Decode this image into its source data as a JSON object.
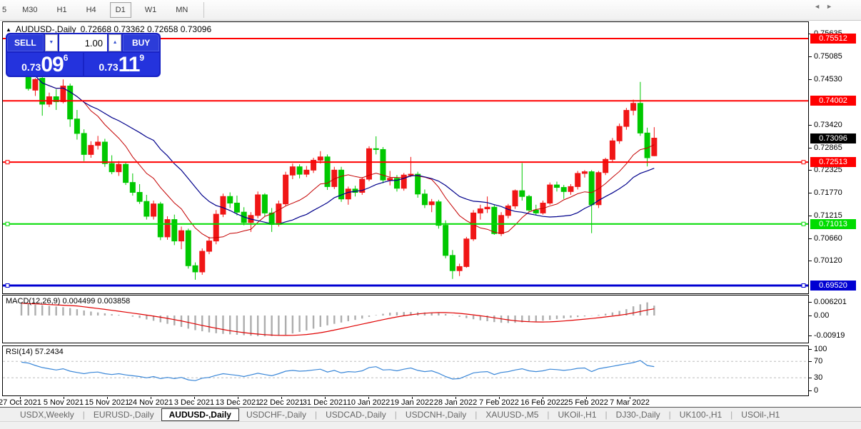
{
  "toolbar": {
    "timeframes": [
      {
        "label": "5",
        "partial": true,
        "active": false
      },
      {
        "label": "M30",
        "active": false
      },
      {
        "label": "H1",
        "active": false
      },
      {
        "label": "H4",
        "active": false
      },
      {
        "label": "D1",
        "active": true
      },
      {
        "label": "W1",
        "active": false
      },
      {
        "label": "MN",
        "active": false
      }
    ]
  },
  "chart": {
    "header": {
      "expand_icon": "▲",
      "symbol": "AUDUSD-,Daily",
      "ohlc_text": "0.72668 0.73362 0.72658 0.73096"
    },
    "trade_panel": {
      "sell_label": "SELL",
      "buy_label": "BUY",
      "volume": "1.00",
      "spin_down_icon": "▼",
      "spin_up_icon": "▲",
      "sell_price": {
        "prefix": "0.73",
        "big": "09",
        "sup": "6"
      },
      "buy_price": {
        "prefix": "0.73",
        "big": "11",
        "sup": "9"
      }
    }
  },
  "chart_data": {
    "type": "candlestick",
    "symbol": "AUDUSD-,Daily",
    "current_bar": {
      "open": 0.72668,
      "high": 0.73362,
      "low": 0.72658,
      "close": 0.73096
    },
    "current_price": {
      "value": 0.73096,
      "label": "0.73096",
      "badge_color": "#000000"
    },
    "y_ticks": [
      0.75635,
      0.75085,
      0.7453,
      0.7342,
      0.72865,
      0.72325,
      0.7177,
      0.71215,
      0.7066,
      0.7012
    ],
    "x_labels": [
      "27 Oct 2021",
      "5 Nov 2021",
      "15 Nov 2021",
      "24 Nov 2021",
      "3 Dec 2021",
      "13 Dec 2021",
      "22 Dec 2021",
      "31 Dec 2021",
      "10 Jan 2022",
      "19 Jan 2022",
      "28 Jan 2022",
      "7 Feb 2022",
      "16 Feb 2022",
      "25 Feb 2022",
      "7 Mar 2022"
    ],
    "levels": [
      {
        "value": 0.75512,
        "label": "0.75512",
        "color": "#FF0000",
        "thickness": 2,
        "handles": false
      },
      {
        "value": 0.74002,
        "label": "0.74002",
        "color": "#FF0000",
        "thickness": 2,
        "handles": false
      },
      {
        "value": 0.72513,
        "label": "0.72513",
        "color": "#FF0000",
        "thickness": 2,
        "handles": true
      },
      {
        "value": 0.71013,
        "label": "0.71013",
        "color": "#00DC00",
        "thickness": 2,
        "handles": true
      },
      {
        "value": 0.6952,
        "label": "0.69520",
        "color": "#0000D2",
        "thickness": 3,
        "handles": true
      }
    ],
    "style": {
      "up_color": "#F01616",
      "down_color": "#00C800",
      "ma_fast_color": "#C40000",
      "ma_slow_color": "#00008B",
      "macd_bar_color": "#ADADAD",
      "macd_signal_color": "#E00000",
      "rsi_line_color": "#3A87D8",
      "rsi_level_color": "#BDBDBD"
    },
    "ma_fast_period": 10,
    "ma_slow_period": 20,
    "candles": [
      [
        0.753,
        0.754,
        0.748,
        0.75
      ],
      [
        0.75,
        0.7538,
        0.7425,
        0.743
      ],
      [
        0.7426,
        0.7455,
        0.7412,
        0.7452
      ],
      [
        0.7455,
        0.7462,
        0.7364,
        0.7392
      ],
      [
        0.7392,
        0.742,
        0.7385,
        0.741
      ],
      [
        0.741,
        0.7428,
        0.7378,
        0.7398
      ],
      [
        0.7398,
        0.7452,
        0.7394,
        0.7436
      ],
      [
        0.7436,
        0.7442,
        0.7337,
        0.7356
      ],
      [
        0.7356,
        0.7378,
        0.7306,
        0.7321
      ],
      [
        0.7321,
        0.7331,
        0.7254,
        0.727
      ],
      [
        0.727,
        0.7302,
        0.7262,
        0.7292
      ],
      [
        0.7292,
        0.7315,
        0.7282,
        0.73
      ],
      [
        0.73,
        0.7308,
        0.724,
        0.7248
      ],
      [
        0.7248,
        0.7268,
        0.7222,
        0.7228
      ],
      [
        0.7228,
        0.7254,
        0.7218,
        0.7246
      ],
      [
        0.7246,
        0.725,
        0.7196,
        0.7202
      ],
      [
        0.7202,
        0.7224,
        0.717,
        0.7178
      ],
      [
        0.7178,
        0.7198,
        0.715,
        0.7156
      ],
      [
        0.7156,
        0.7172,
        0.7112,
        0.712
      ],
      [
        0.712,
        0.7158,
        0.7112,
        0.715
      ],
      [
        0.715,
        0.7155,
        0.7062,
        0.707
      ],
      [
        0.707,
        0.712,
        0.7063,
        0.7112
      ],
      [
        0.7112,
        0.7124,
        0.705,
        0.706
      ],
      [
        0.706,
        0.7095,
        0.704,
        0.7085
      ],
      [
        0.7085,
        0.709,
        0.6993,
        0.7
      ],
      [
        0.7,
        0.7008,
        0.6966,
        0.6985
      ],
      [
        0.6985,
        0.7042,
        0.6978,
        0.7035
      ],
      [
        0.7035,
        0.707,
        0.7028,
        0.706
      ],
      [
        0.706,
        0.7135,
        0.7052,
        0.7125
      ],
      [
        0.7125,
        0.7175,
        0.7118,
        0.7168
      ],
      [
        0.7168,
        0.7178,
        0.714,
        0.7152
      ],
      [
        0.7152,
        0.717,
        0.7122,
        0.713
      ],
      [
        0.713,
        0.7142,
        0.7098,
        0.7105
      ],
      [
        0.7105,
        0.713,
        0.7082,
        0.7122
      ],
      [
        0.7122,
        0.718,
        0.7115,
        0.7172
      ],
      [
        0.7172,
        0.7176,
        0.712,
        0.7128
      ],
      [
        0.7128,
        0.714,
        0.7082,
        0.71
      ],
      [
        0.71,
        0.7158,
        0.7095,
        0.715
      ],
      [
        0.715,
        0.7228,
        0.7145,
        0.722
      ],
      [
        0.722,
        0.7248,
        0.721,
        0.724
      ],
      [
        0.724,
        0.7246,
        0.7212,
        0.7222
      ],
      [
        0.7222,
        0.7242,
        0.7215,
        0.7232
      ],
      [
        0.7232,
        0.7262,
        0.7225,
        0.7256
      ],
      [
        0.7256,
        0.7278,
        0.7248,
        0.7264
      ],
      [
        0.7264,
        0.727,
        0.7184,
        0.7192
      ],
      [
        0.7192,
        0.724,
        0.7186,
        0.7232
      ],
      [
        0.7232,
        0.724,
        0.7155,
        0.7162
      ],
      [
        0.7162,
        0.7192,
        0.7148,
        0.7186
      ],
      [
        0.7186,
        0.7194,
        0.7168,
        0.7178
      ],
      [
        0.7178,
        0.7215,
        0.7172,
        0.721
      ],
      [
        0.721,
        0.729,
        0.7205,
        0.7284
      ],
      [
        0.7284,
        0.7314,
        0.727,
        0.7282
      ],
      [
        0.7282,
        0.7288,
        0.72,
        0.7208
      ],
      [
        0.7208,
        0.723,
        0.7195,
        0.7212
      ],
      [
        0.7212,
        0.722,
        0.718,
        0.7188
      ],
      [
        0.7188,
        0.7225,
        0.7182,
        0.722
      ],
      [
        0.722,
        0.7264,
        0.7215,
        0.7222
      ],
      [
        0.7222,
        0.7228,
        0.7165,
        0.7174
      ],
      [
        0.7174,
        0.7185,
        0.714,
        0.7148
      ],
      [
        0.7148,
        0.7162,
        0.713,
        0.7155
      ],
      [
        0.7155,
        0.716,
        0.709,
        0.7098
      ],
      [
        0.7098,
        0.711,
        0.7018,
        0.7025
      ],
      [
        0.7025,
        0.7038,
        0.6968,
        0.6988
      ],
      [
        0.6988,
        0.7005,
        0.6975,
        0.6998
      ],
      [
        0.6998,
        0.707,
        0.6995,
        0.7065
      ],
      [
        0.7065,
        0.7135,
        0.706,
        0.7128
      ],
      [
        0.7128,
        0.7148,
        0.7112,
        0.7138
      ],
      [
        0.7138,
        0.7168,
        0.7128,
        0.7142
      ],
      [
        0.7142,
        0.7148,
        0.7075,
        0.7078
      ],
      [
        0.7078,
        0.713,
        0.7072,
        0.7122
      ],
      [
        0.7122,
        0.715,
        0.7115,
        0.7145
      ],
      [
        0.7145,
        0.7185,
        0.7138,
        0.7182
      ],
      [
        0.7182,
        0.7249,
        0.7158,
        0.7168
      ],
      [
        0.7168,
        0.7172,
        0.713,
        0.7135
      ],
      [
        0.7135,
        0.7148,
        0.7122,
        0.7128
      ],
      [
        0.7128,
        0.7158,
        0.7124,
        0.7152
      ],
      [
        0.7152,
        0.7202,
        0.7148,
        0.7196
      ],
      [
        0.7196,
        0.7204,
        0.718,
        0.719
      ],
      [
        0.719,
        0.7196,
        0.7162,
        0.718
      ],
      [
        0.718,
        0.7198,
        0.7172,
        0.7192
      ],
      [
        0.7192,
        0.723,
        0.7185,
        0.7224
      ],
      [
        0.7224,
        0.7232,
        0.7214,
        0.7228
      ],
      [
        0.7228,
        0.7232,
        0.7079,
        0.7148
      ],
      [
        0.7148,
        0.723,
        0.714,
        0.7226
      ],
      [
        0.7226,
        0.7262,
        0.722,
        0.7258
      ],
      [
        0.7258,
        0.731,
        0.7252,
        0.7303
      ],
      [
        0.7303,
        0.7345,
        0.7296,
        0.7338
      ],
      [
        0.7338,
        0.7383,
        0.733,
        0.7377
      ],
      [
        0.7377,
        0.7403,
        0.7365,
        0.7394
      ],
      [
        0.7394,
        0.7446,
        0.7315,
        0.7322
      ],
      [
        0.7322,
        0.7335,
        0.7241,
        0.7262
      ],
      [
        0.72668,
        0.73362,
        0.72658,
        0.73096
      ]
    ],
    "macd": {
      "name": "MACD(12,26,9)",
      "value_text": "0.004499 0.003858",
      "signal_period": 9,
      "y_ticks": [
        {
          "v": 0.006201,
          "label": "0.006201"
        },
        {
          "v": 0,
          "label": "0.00"
        },
        {
          "v": -0.00919,
          "label": "-0.00919"
        }
      ],
      "hist": [
        0.0056,
        0.0053,
        0.005,
        0.0047,
        0.0044,
        0.0041,
        0.0038,
        0.0034,
        0.0029,
        0.0023,
        0.0018,
        0.0014,
        0.001,
        0.0006,
        0.0003,
        0.0,
        -0.0005,
        -0.0011,
        -0.0018,
        -0.0024,
        -0.0031,
        -0.0038,
        -0.0045,
        -0.0052,
        -0.006,
        -0.0067,
        -0.0072,
        -0.0077,
        -0.0081,
        -0.0084,
        -0.0086,
        -0.0088,
        -0.009,
        -0.0092,
        -0.0094,
        -0.0095,
        -0.0094,
        -0.0092,
        -0.0088,
        -0.0082,
        -0.0075,
        -0.0068,
        -0.006,
        -0.0052,
        -0.0045,
        -0.0038,
        -0.0032,
        -0.0026,
        -0.002,
        -0.0014,
        -0.0006,
        0.0002,
        0.0008,
        0.0013,
        0.0015,
        0.0016,
        0.0016,
        0.0015,
        0.0014,
        0.0013,
        0.0011,
        0.0007,
        0.0001,
        -0.0006,
        -0.0012,
        -0.0017,
        -0.0022,
        -0.0026,
        -0.003,
        -0.0033,
        -0.0034,
        -0.0033,
        -0.0031,
        -0.0029,
        -0.0027,
        -0.0024,
        -0.002,
        -0.0016,
        -0.0013,
        -0.001,
        -0.0007,
        -0.0004,
        -0.0001,
        0.0003,
        0.0008,
        0.0014,
        0.0021,
        0.0029,
        0.0042,
        0.0051,
        0.006,
        0.0045
      ]
    },
    "rsi": {
      "name": "RSI(14)",
      "value_text": "57.2434",
      "levels": [
        70,
        30
      ],
      "y_ticks": [
        {
          "v": 100,
          "label": "100"
        },
        {
          "v": 70,
          "label": "70"
        },
        {
          "v": 30,
          "label": "30"
        },
        {
          "v": 0,
          "label": "0"
        }
      ],
      "values": [
        68,
        66,
        60,
        55,
        52,
        49,
        52,
        46,
        43,
        40,
        43,
        44,
        40,
        38,
        40,
        37,
        35,
        33,
        30,
        33,
        28,
        31,
        28,
        31,
        25,
        23,
        29,
        31,
        36,
        40,
        38,
        36,
        33,
        37,
        41,
        38,
        35,
        40,
        46,
        48,
        46,
        47,
        49,
        51,
        44,
        48,
        42,
        45,
        44,
        47,
        55,
        57,
        49,
        50,
        47,
        51,
        54,
        48,
        45,
        47,
        41,
        33,
        27,
        28,
        35,
        42,
        44,
        45,
        38,
        43,
        45,
        49,
        52,
        47,
        45,
        47,
        51,
        50,
        48,
        50,
        53,
        54,
        45,
        52,
        55,
        58,
        61,
        64,
        67,
        72,
        60,
        57.24
      ]
    }
  },
  "tabs": [
    {
      "label": "USDX,Weekly",
      "active": false
    },
    {
      "label": "EURUSD-,Daily",
      "active": false
    },
    {
      "label": "AUDUSD-,Daily",
      "active": true
    },
    {
      "label": "USDCHF-,Daily",
      "active": false
    },
    {
      "label": "USDCAD-,Daily",
      "active": false
    },
    {
      "label": "USDCNH-,Daily",
      "active": false
    },
    {
      "label": "XAUUSD-,M5",
      "active": false
    },
    {
      "label": "UKOil-,H1",
      "active": false
    },
    {
      "label": "DJ30-,Daily",
      "active": false
    },
    {
      "label": "UK100-,H1",
      "active": false
    },
    {
      "label": "USOil-,H1",
      "active": false
    }
  ],
  "nav_arrows": {
    "left": "◄",
    "right": "►"
  }
}
